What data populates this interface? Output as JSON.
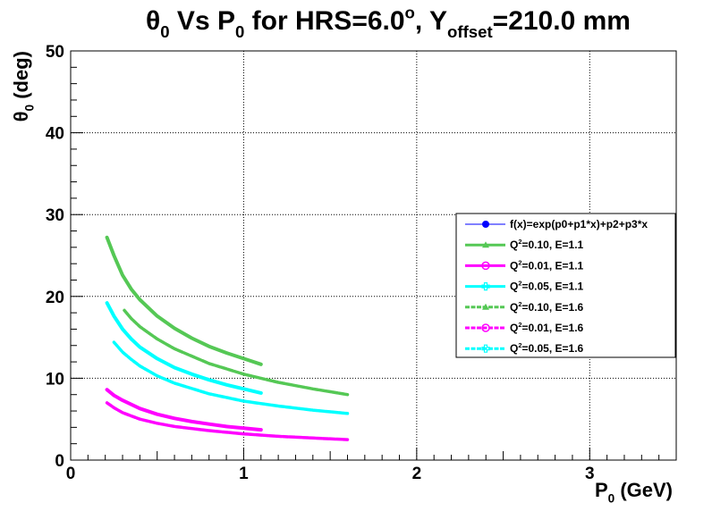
{
  "chart_data": {
    "type": "line",
    "title": {
      "parts": [
        {
          "text": "θ"
        },
        {
          "text": "0",
          "sub": true
        },
        {
          "text": " Vs P"
        },
        {
          "text": "0",
          "sub": true
        },
        {
          "text": " for HRS=6.0"
        },
        {
          "text": "o",
          "sup": true
        },
        {
          "text": ", Y"
        },
        {
          "text": "offset",
          "sub": true
        },
        {
          "text": "=210.0 mm"
        }
      ]
    },
    "xlabel": {
      "parts": [
        {
          "text": "P"
        },
        {
          "text": "0",
          "sub": true
        },
        {
          "text": " (GeV)"
        }
      ]
    },
    "ylabel": {
      "parts": [
        {
          "text": "θ"
        },
        {
          "text": "0",
          "sub": true
        },
        {
          "text": " (deg)"
        }
      ]
    },
    "xlim": [
      0,
      3.5
    ],
    "ylim": [
      0,
      50
    ],
    "x_ticks": [
      0,
      1,
      2,
      3
    ],
    "y_ticks": [
      0,
      10,
      20,
      30,
      40,
      50
    ],
    "grid": true,
    "legend_position": "right",
    "series": [
      {
        "name": "f(x)=exp(p0+p1*x)+p2+p3*x",
        "color": "#0000ff",
        "style": "fit",
        "marker": "circle",
        "x": [],
        "y": []
      },
      {
        "name": "Q^2=0.10, E=1.1",
        "label_parts": [
          {
            "text": "Q"
          },
          {
            "text": "2",
            "sup": true
          },
          {
            "text": "=0.10, E=1.1"
          }
        ],
        "color": "#55c855",
        "style": "solid",
        "marker": "triangle",
        "x": [
          0.21,
          0.25,
          0.3,
          0.35,
          0.4,
          0.5,
          0.6,
          0.7,
          0.8,
          0.9,
          1.0,
          1.1
        ],
        "y": [
          27.2,
          25.0,
          22.6,
          20.9,
          19.6,
          17.6,
          16.1,
          14.9,
          13.9,
          13.1,
          12.4,
          11.7
        ]
      },
      {
        "name": "Q^2=0.01, E=1.1",
        "label_parts": [
          {
            "text": "Q"
          },
          {
            "text": "2",
            "sup": true
          },
          {
            "text": "=0.01, E=1.1"
          }
        ],
        "color": "#ff00ff",
        "style": "solid",
        "marker": "circle",
        "x": [
          0.21,
          0.25,
          0.3,
          0.4,
          0.5,
          0.6,
          0.7,
          0.8,
          0.9,
          1.0,
          1.1
        ],
        "y": [
          8.6,
          7.9,
          7.3,
          6.3,
          5.6,
          5.1,
          4.7,
          4.4,
          4.1,
          3.9,
          3.7
        ]
      },
      {
        "name": "Q^2=0.05, E=1.1",
        "label_parts": [
          {
            "text": "Q"
          },
          {
            "text": "2",
            "sup": true
          },
          {
            "text": "=0.05, E=1.1"
          }
        ],
        "color": "#00ffff",
        "style": "solid",
        "marker": "cross",
        "x": [
          0.21,
          0.25,
          0.3,
          0.35,
          0.4,
          0.5,
          0.6,
          0.7,
          0.8,
          0.9,
          1.0,
          1.1
        ],
        "y": [
          19.2,
          17.6,
          16.0,
          14.8,
          13.8,
          12.4,
          11.3,
          10.5,
          9.8,
          9.2,
          8.7,
          8.2
        ]
      },
      {
        "name": "Q^2=0.10, E=1.6",
        "label_parts": [
          {
            "text": "Q"
          },
          {
            "text": "2",
            "sup": true
          },
          {
            "text": "=0.10, E=1.6"
          }
        ],
        "color": "#55c855",
        "style": "dashed",
        "marker": "triangle",
        "x": [
          0.31,
          0.35,
          0.4,
          0.5,
          0.6,
          0.8,
          1.0,
          1.2,
          1.4,
          1.6
        ],
        "y": [
          18.3,
          17.3,
          16.3,
          14.8,
          13.6,
          11.8,
          10.5,
          9.5,
          8.7,
          8.0
        ]
      },
      {
        "name": "Q^2=0.01, E=1.6",
        "label_parts": [
          {
            "text": "Q"
          },
          {
            "text": "2",
            "sup": true
          },
          {
            "text": "=0.01, E=1.6"
          }
        ],
        "color": "#ff00ff",
        "style": "dashed",
        "marker": "circle",
        "x": [
          0.21,
          0.25,
          0.3,
          0.4,
          0.5,
          0.6,
          0.8,
          1.0,
          1.2,
          1.4,
          1.6
        ],
        "y": [
          7.0,
          6.4,
          5.8,
          5.0,
          4.5,
          4.1,
          3.6,
          3.2,
          2.9,
          2.7,
          2.5
        ]
      },
      {
        "name": "Q^2=0.05, E=1.6",
        "label_parts": [
          {
            "text": "Q"
          },
          {
            "text": "2",
            "sup": true
          },
          {
            "text": "=0.05, E=1.6"
          }
        ],
        "color": "#00ffff",
        "style": "dashed",
        "marker": "cross",
        "x": [
          0.25,
          0.3,
          0.35,
          0.4,
          0.5,
          0.6,
          0.8,
          1.0,
          1.2,
          1.4,
          1.6
        ],
        "y": [
          14.4,
          13.2,
          12.3,
          11.5,
          10.3,
          9.4,
          8.1,
          7.2,
          6.6,
          6.1,
          5.7
        ]
      }
    ]
  }
}
